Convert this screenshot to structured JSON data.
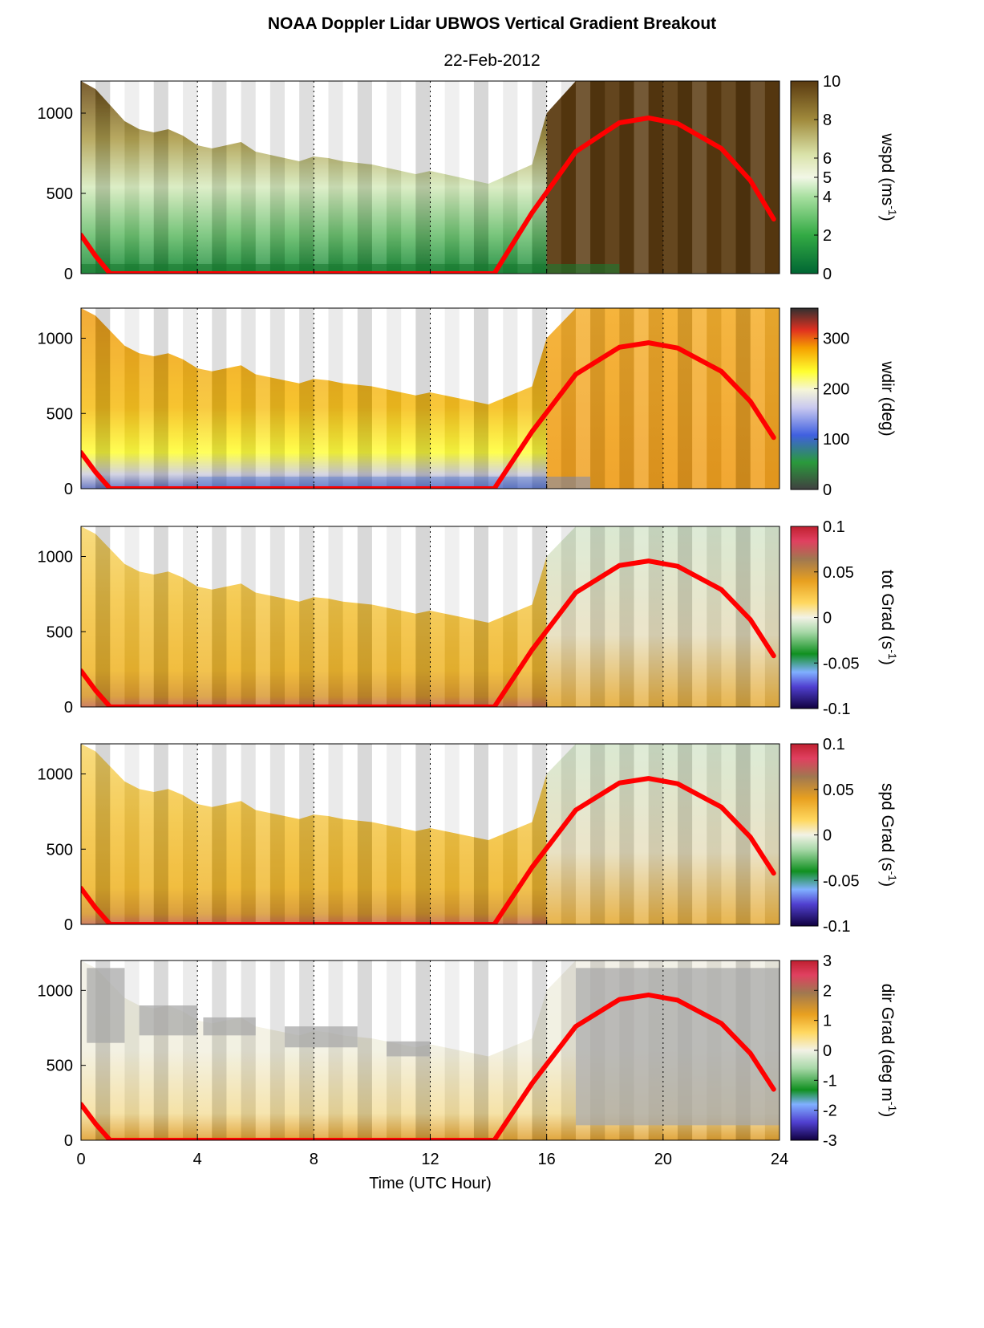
{
  "title": "NOAA Doppler Lidar  UBWOS  Vertical Gradient Breakout",
  "subtitle": "22-Feb-2012",
  "colors": {
    "boundary_line": "#ff0000",
    "gridline": "#000000"
  },
  "chart_data": [
    {
      "type": "heatmap",
      "name": "wspd",
      "ylabel": "",
      "cbar_label": "wspd (ms",
      "cbar_label_sup": "-1",
      "cbar_label_end": ")",
      "xlim": [
        0,
        24
      ],
      "ylim": [
        0,
        1200
      ],
      "yticks": [
        "0",
        "500",
        "1000"
      ],
      "cbar_range": [
        0,
        10
      ],
      "cbar_ticks": [
        "0",
        "2",
        "4",
        "5",
        "6",
        "8",
        "10"
      ],
      "cbar_tick_values": [
        0,
        2,
        4,
        5,
        6,
        8,
        10
      ],
      "colormap": "brown-green",
      "grid": "dotted vertical at 4, 8, 12, 16, 20"
    },
    {
      "type": "heatmap",
      "name": "wdir",
      "cbar_label": "wdir (deg)",
      "cbar_label_sup": "",
      "cbar_label_end": "",
      "xlim": [
        0,
        24
      ],
      "ylim": [
        0,
        1200
      ],
      "yticks": [
        "0",
        "500",
        "1000"
      ],
      "cbar_range": [
        0,
        360
      ],
      "cbar_ticks": [
        "0",
        "100",
        "200",
        "300"
      ],
      "cbar_tick_values": [
        0,
        100,
        200,
        300
      ],
      "colormap": "direction",
      "grid": "dotted vertical at 4, 8, 12, 16, 20"
    },
    {
      "type": "heatmap",
      "name": "tot-grad",
      "cbar_label": "tot Grad (s",
      "cbar_label_sup": "-1",
      "cbar_label_end": ")",
      "xlim": [
        0,
        24
      ],
      "ylim": [
        0,
        1200
      ],
      "yticks": [
        "0",
        "500",
        "1000"
      ],
      "cbar_range": [
        -0.1,
        0.1
      ],
      "cbar_ticks": [
        "-0.1",
        "-0.05",
        "0",
        "0.05",
        "0.1"
      ],
      "cbar_tick_values": [
        -0.1,
        -0.05,
        0,
        0.05,
        0.1
      ],
      "colormap": "diverging",
      "grid": "dotted vertical at 4, 8, 12, 16, 20"
    },
    {
      "type": "heatmap",
      "name": "spd-grad",
      "cbar_label": "spd Grad (s",
      "cbar_label_sup": "-1",
      "cbar_label_end": ")",
      "xlim": [
        0,
        24
      ],
      "ylim": [
        0,
        1200
      ],
      "yticks": [
        "0",
        "500",
        "1000"
      ],
      "cbar_range": [
        -0.1,
        0.1
      ],
      "cbar_ticks": [
        "-0.1",
        "-0.05",
        "0",
        "0.05",
        "0.1"
      ],
      "cbar_tick_values": [
        -0.1,
        -0.05,
        0,
        0.05,
        0.1
      ],
      "colormap": "diverging",
      "grid": "dotted vertical at 4, 8, 12, 16, 20"
    },
    {
      "type": "heatmap",
      "name": "dir-grad",
      "cbar_label": "dir Grad (deg m",
      "cbar_label_sup": "-1",
      "cbar_label_end": ")",
      "xlim": [
        0,
        24
      ],
      "ylim": [
        0,
        1200
      ],
      "yticks": [
        "0",
        "500",
        "1000"
      ],
      "cbar_range": [
        -3,
        3
      ],
      "cbar_ticks": [
        "-3",
        "-2",
        "-1",
        "0",
        "1",
        "2",
        "3"
      ],
      "cbar_tick_values": [
        -3,
        -2,
        -1,
        0,
        1,
        2,
        3
      ],
      "colormap": "diverging",
      "grid": "dotted vertical at 4, 8, 12, 16, 20"
    }
  ],
  "boundary_line": {
    "type": "line",
    "x": [
      0,
      0.5,
      1.0,
      14.2,
      15.5,
      17,
      18.5,
      19.5,
      20.5,
      22,
      23,
      23.8
    ],
    "y": [
      240,
      110,
      0,
      0,
      380,
      760,
      940,
      970,
      935,
      780,
      580,
      340
    ]
  },
  "top_boundary": {
    "x": [
      0,
      0.5,
      1,
      1.5,
      2,
      2.5,
      3,
      3.5,
      4,
      4.5,
      5,
      5.5,
      6,
      6.5,
      7,
      7.5,
      8,
      8.5,
      9,
      9.5,
      10,
      10.5,
      11,
      11.5,
      12,
      12.5,
      13,
      13.5,
      14,
      14.5,
      15,
      15.5,
      16,
      16.5,
      17,
      24
    ],
    "y": [
      1200,
      1150,
      1050,
      950,
      900,
      880,
      900,
      860,
      800,
      780,
      800,
      820,
      760,
      740,
      720,
      700,
      730,
      720,
      700,
      690,
      680,
      660,
      640,
      620,
      640,
      620,
      600,
      580,
      560,
      600,
      640,
      680,
      1000,
      1100,
      1200,
      1200
    ]
  },
  "xaxis": {
    "label": "Time (UTC Hour)",
    "ticks": [
      "0",
      "4",
      "8",
      "12",
      "16",
      "20",
      "24"
    ],
    "tick_values": [
      0,
      4,
      8,
      12,
      16,
      20,
      24
    ]
  }
}
